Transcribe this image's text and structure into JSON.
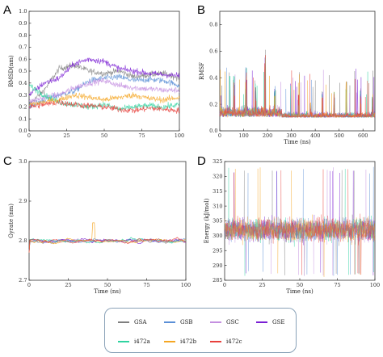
{
  "chart_data": [
    {
      "panel": "A",
      "type": "line",
      "xlabel": "",
      "ylabel": "RMSD(nm)",
      "xlim": [
        0,
        100
      ],
      "ylim": [
        0,
        1.0
      ],
      "xticks": [
        "0",
        "25",
        "50",
        "75",
        "100"
      ],
      "yticks": [
        "0.0",
        "0.1",
        "0.2",
        "0.3",
        "0.4",
        "0.5",
        "0.6",
        "0.7",
        "0.8",
        "0.9",
        "1.0"
      ],
      "series": [
        {
          "name": "GSA",
          "color": "#7f7f7f",
          "x": [
            0,
            10,
            20,
            30,
            40,
            50,
            60,
            70,
            80,
            90,
            100
          ],
          "values": [
            0.22,
            0.34,
            0.52,
            0.55,
            0.5,
            0.48,
            0.5,
            0.45,
            0.47,
            0.48,
            0.44
          ]
        },
        {
          "name": "GSB",
          "color": "#5b8fd6",
          "x": [
            0,
            10,
            20,
            30,
            40,
            50,
            60,
            70,
            80,
            90,
            100
          ],
          "values": [
            0.2,
            0.26,
            0.3,
            0.33,
            0.42,
            0.44,
            0.45,
            0.42,
            0.43,
            0.42,
            0.38
          ]
        },
        {
          "name": "GSC",
          "color": "#c48fe0",
          "x": [
            0,
            10,
            20,
            30,
            40,
            50,
            60,
            70,
            80,
            90,
            100
          ],
          "values": [
            0.24,
            0.28,
            0.3,
            0.36,
            0.4,
            0.42,
            0.38,
            0.36,
            0.35,
            0.34,
            0.34
          ]
        },
        {
          "name": "GSE",
          "color": "#7a1fd4",
          "x": [
            0,
            10,
            20,
            30,
            40,
            50,
            60,
            70,
            80,
            90,
            100
          ],
          "values": [
            0.3,
            0.4,
            0.44,
            0.56,
            0.6,
            0.58,
            0.52,
            0.5,
            0.48,
            0.47,
            0.46
          ]
        },
        {
          "name": "i472a",
          "color": "#2fd3a0",
          "x": [
            0,
            10,
            20,
            30,
            40,
            50,
            60,
            70,
            80,
            90,
            100
          ],
          "values": [
            0.38,
            0.3,
            0.24,
            0.22,
            0.2,
            0.22,
            0.18,
            0.2,
            0.21,
            0.2,
            0.22
          ]
        },
        {
          "name": "i472b",
          "color": "#f5a623",
          "x": [
            0,
            10,
            20,
            30,
            40,
            50,
            60,
            70,
            80,
            90,
            100
          ],
          "values": [
            0.22,
            0.24,
            0.26,
            0.3,
            0.28,
            0.26,
            0.28,
            0.3,
            0.27,
            0.26,
            0.28
          ]
        },
        {
          "name": "i472c",
          "color": "#e8413c",
          "x": [
            0,
            10,
            20,
            30,
            40,
            50,
            60,
            70,
            80,
            90,
            100
          ],
          "values": [
            0.2,
            0.22,
            0.24,
            0.22,
            0.21,
            0.2,
            0.18,
            0.17,
            0.19,
            0.18,
            0.17
          ]
        }
      ]
    },
    {
      "panel": "B",
      "type": "line",
      "xlabel": "Time (ns)",
      "ylabel": "RMSF",
      "xlim": [
        0,
        650
      ],
      "ylim": [
        0,
        0.9
      ],
      "xticks": [
        "0",
        "100",
        "200",
        "300",
        "400",
        "500",
        "600"
      ],
      "yticks": [
        "0.0",
        "0.2",
        "0.4",
        "0.6",
        "0.8"
      ],
      "series_note_peaks": {
        "x": [
          60,
          110,
          150,
          190,
          230,
          330,
          380,
          430,
          480,
          530,
          590,
          640
        ],
        "values": [
          0.42,
          0.48,
          0.38,
          0.62,
          0.35,
          0.28,
          0.22,
          0.3,
          0.3,
          0.38,
          0.32,
          0.28
        ]
      },
      "baseline": 0.1
    },
    {
      "panel": "C",
      "type": "line",
      "xlabel": "Time (ns)",
      "ylabel": "Gyrate (nm)",
      "xlim": [
        0,
        100
      ],
      "ylim": [
        2.7,
        3.0
      ],
      "xticks": [
        "0",
        "25",
        "50",
        "75",
        "100"
      ],
      "yticks": [
        "2.7",
        "2.8",
        "2.9",
        "3.0"
      ],
      "mean": 2.8,
      "spread": 0.015,
      "peak": {
        "x": 41,
        "value": 2.845
      }
    },
    {
      "panel": "D",
      "type": "line",
      "xlabel": "Time (ns)",
      "ylabel": "Energy (kJ/mol)",
      "xlim": [
        0,
        100
      ],
      "ylim": [
        285,
        325
      ],
      "xticks": [
        "0",
        "25",
        "50",
        "75",
        "100"
      ],
      "yticks": [
        "285",
        "290",
        "295",
        "300",
        "305",
        "310",
        "315",
        "320",
        "325"
      ],
      "mean": 302,
      "band": [
        293,
        311
      ],
      "extremes": [
        287,
        322
      ]
    }
  ],
  "panels": {
    "A": "A",
    "B": "B",
    "C": "C",
    "D": "D"
  },
  "legend": [
    {
      "name": "GSA",
      "color": "#7f7f7f"
    },
    {
      "name": "GSB",
      "color": "#5b8fd6"
    },
    {
      "name": "GSC",
      "color": "#c48fe0"
    },
    {
      "name": "GSE",
      "color": "#7a1fd4"
    },
    {
      "name": "i472a",
      "color": "#2fd3a0"
    },
    {
      "name": "i472b",
      "color": "#f5a623"
    },
    {
      "name": "i472c",
      "color": "#e8413c"
    }
  ]
}
